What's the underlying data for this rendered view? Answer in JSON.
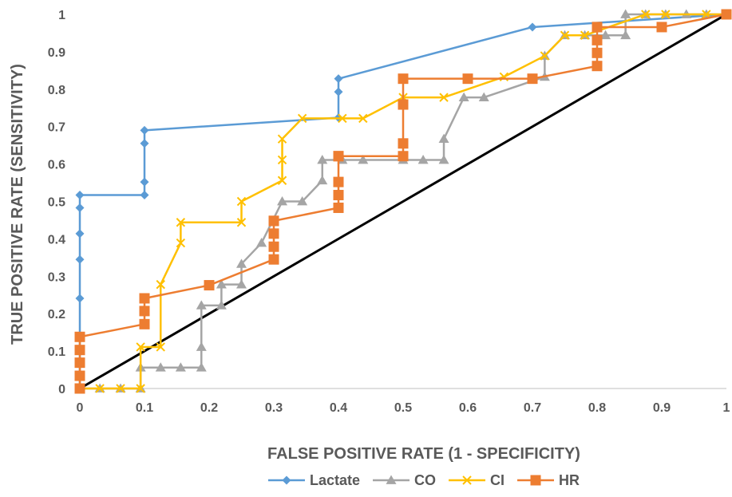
{
  "chart_data": {
    "type": "line",
    "xlabel": "FALSE POSITIVE RATE (1 - SPECIFICITY)",
    "ylabel": "TRUE POSITIVE RATE (SENSITIVITY)",
    "xlim": [
      0,
      1
    ],
    "ylim": [
      0,
      1
    ],
    "x_ticks": [
      "0",
      "0.1",
      "0.2",
      "0.3",
      "0.4",
      "0.5",
      "0.6",
      "0.7",
      "0.8",
      "0.9",
      "1"
    ],
    "y_ticks": [
      "0",
      "0.1",
      "0.2",
      "0.3",
      "0.4",
      "0.5",
      "0.6",
      "0.7",
      "0.8",
      "0.9",
      "1"
    ],
    "grid": false,
    "legend_position": "bottom",
    "reference_line": {
      "x": [
        0,
        1
      ],
      "y": [
        0,
        1
      ],
      "color": "#000000"
    },
    "series": [
      {
        "name": "Lactate",
        "color": "#5B9BD5",
        "marker": "diamond",
        "x": [
          0,
          0,
          0,
          0,
          0,
          0,
          0.1,
          0.1,
          0.1,
          0.1,
          0.4,
          0.4,
          0.4,
          0.7,
          1
        ],
        "y": [
          0,
          0.241,
          0.345,
          0.414,
          0.483,
          0.517,
          0.517,
          0.552,
          0.655,
          0.69,
          0.724,
          0.793,
          0.828,
          0.966,
          1
        ]
      },
      {
        "name": "CO",
        "color": "#A5A5A5",
        "marker": "triangle",
        "x": [
          0,
          0.031,
          0.063,
          0.094,
          0.094,
          0.125,
          0.156,
          0.188,
          0.188,
          0.188,
          0.219,
          0.219,
          0.25,
          0.25,
          0.281,
          0.313,
          0.344,
          0.375,
          0.375,
          0.406,
          0.438,
          0.5,
          0.531,
          0.563,
          0.563,
          0.594,
          0.625,
          0.719,
          0.719,
          0.75,
          0.781,
          0.813,
          0.844,
          0.844,
          0.875,
          0.906,
          0.938,
          0.969,
          1
        ],
        "y": [
          0,
          0,
          0,
          0,
          0.056,
          0.056,
          0.056,
          0.056,
          0.111,
          0.222,
          0.222,
          0.278,
          0.278,
          0.333,
          0.389,
          0.5,
          0.5,
          0.556,
          0.611,
          0.611,
          0.611,
          0.611,
          0.611,
          0.611,
          0.667,
          0.778,
          0.778,
          0.833,
          0.889,
          0.944,
          0.944,
          0.944,
          0.944,
          1,
          1,
          1,
          1,
          1,
          1
        ]
      },
      {
        "name": "CI",
        "color": "#FFC000",
        "marker": "x",
        "x": [
          0,
          0.031,
          0.063,
          0.094,
          0.094,
          0.125,
          0.125,
          0.156,
          0.156,
          0.25,
          0.25,
          0.313,
          0.313,
          0.313,
          0.344,
          0.406,
          0.438,
          0.5,
          0.563,
          0.656,
          0.719,
          0.75,
          0.781,
          0.875,
          0.906,
          0.969,
          1
        ],
        "y": [
          0,
          0,
          0,
          0,
          0.111,
          0.111,
          0.278,
          0.389,
          0.444,
          0.444,
          0.5,
          0.556,
          0.611,
          0.667,
          0.722,
          0.722,
          0.722,
          0.778,
          0.778,
          0.833,
          0.889,
          0.944,
          0.944,
          1,
          1,
          1,
          1
        ]
      },
      {
        "name": "HR",
        "color": "#ED7D31",
        "marker": "square",
        "x": [
          0,
          0,
          0,
          0,
          0,
          0.1,
          0.1,
          0.1,
          0.2,
          0.3,
          0.3,
          0.3,
          0.3,
          0.3,
          0.4,
          0.4,
          0.4,
          0.4,
          0.4,
          0.5,
          0.5,
          0.5,
          0.5,
          0.6,
          0.7,
          0.8,
          0.8,
          0.8,
          0.8,
          0.8,
          0.9,
          1
        ],
        "y": [
          0,
          0.034,
          0.069,
          0.103,
          0.138,
          0.172,
          0.207,
          0.241,
          0.276,
          0.345,
          0.379,
          0.414,
          0.448,
          0.448,
          0.483,
          0.517,
          0.552,
          0.621,
          0.621,
          0.621,
          0.655,
          0.759,
          0.828,
          0.828,
          0.828,
          0.862,
          0.897,
          0.931,
          0.966,
          0.966,
          0.966,
          1
        ]
      }
    ]
  }
}
